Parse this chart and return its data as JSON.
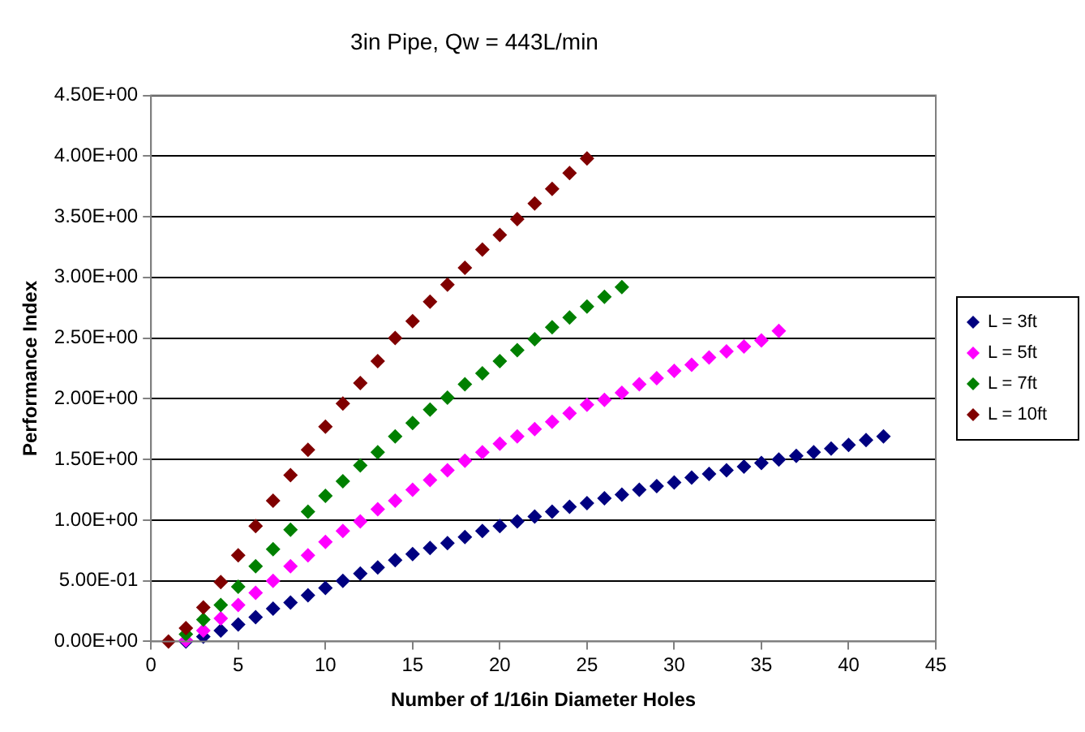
{
  "chart_data": {
    "type": "scatter",
    "title": "3in Pipe, Qw = 443L/min",
    "xlabel": "Number of 1/16in Diameter Holes",
    "ylabel": "Performance Index",
    "xlim": [
      0,
      45
    ],
    "xticks": [
      0,
      5,
      10,
      15,
      20,
      25,
      30,
      35,
      40,
      45
    ],
    "ylim": [
      0,
      4.5
    ],
    "yticks": [
      {
        "value": 0,
        "label": "0.00E+00"
      },
      {
        "value": 0.5,
        "label": "5.00E-01"
      },
      {
        "value": 1,
        "label": "1.00E+00"
      },
      {
        "value": 1.5,
        "label": "1.50E+00"
      },
      {
        "value": 2,
        "label": "2.00E+00"
      },
      {
        "value": 2.5,
        "label": "2.50E+00"
      },
      {
        "value": 3,
        "label": "3.00E+00"
      },
      {
        "value": 3.5,
        "label": "3.50E+00"
      },
      {
        "value": 4,
        "label": "4.00E+00"
      },
      {
        "value": 4.5,
        "label": "4.50E+00"
      }
    ],
    "grid": "y",
    "legend": "right",
    "marker": "diamond",
    "series": [
      {
        "name": "L = 3ft",
        "color": "#000080",
        "x": [
          2,
          3,
          4,
          5,
          6,
          7,
          8,
          9,
          10,
          11,
          12,
          13,
          14,
          15,
          16,
          17,
          18,
          19,
          20,
          21,
          22,
          23,
          24,
          25,
          26,
          27,
          28,
          29,
          30,
          31,
          32,
          33,
          34,
          35,
          36,
          37,
          38,
          39,
          40,
          41,
          42
        ],
        "values": [
          0.0,
          0.04,
          0.09,
          0.14,
          0.2,
          0.27,
          0.32,
          0.38,
          0.44,
          0.5,
          0.56,
          0.61,
          0.67,
          0.72,
          0.77,
          0.81,
          0.86,
          0.91,
          0.95,
          0.99,
          1.03,
          1.07,
          1.11,
          1.14,
          1.18,
          1.21,
          1.25,
          1.28,
          1.31,
          1.35,
          1.38,
          1.41,
          1.44,
          1.47,
          1.5,
          1.53,
          1.56,
          1.59,
          1.62,
          1.66,
          1.69
        ]
      },
      {
        "name": "L = 5ft",
        "color": "#ff00ff",
        "x": [
          2,
          3,
          4,
          5,
          6,
          7,
          8,
          9,
          10,
          11,
          12,
          13,
          14,
          15,
          16,
          17,
          18,
          19,
          20,
          21,
          22,
          23,
          24,
          25,
          26,
          27,
          28,
          29,
          30,
          31,
          32,
          33,
          34,
          35,
          36
        ],
        "values": [
          0.01,
          0.09,
          0.19,
          0.3,
          0.4,
          0.5,
          0.62,
          0.71,
          0.82,
          0.91,
          0.99,
          1.09,
          1.16,
          1.25,
          1.33,
          1.41,
          1.49,
          1.56,
          1.63,
          1.69,
          1.75,
          1.81,
          1.88,
          1.95,
          1.99,
          2.05,
          2.12,
          2.17,
          2.23,
          2.28,
          2.34,
          2.39,
          2.43,
          2.48,
          2.56
        ]
      },
      {
        "name": "L = 7ft",
        "color": "#008000",
        "x": [
          2,
          3,
          4,
          5,
          6,
          7,
          8,
          9,
          10,
          11,
          12,
          13,
          14,
          15,
          16,
          17,
          18,
          19,
          20,
          21,
          22,
          23,
          24,
          25,
          26,
          27
        ],
        "values": [
          0.06,
          0.18,
          0.3,
          0.45,
          0.62,
          0.76,
          0.92,
          1.07,
          1.2,
          1.32,
          1.45,
          1.56,
          1.69,
          1.8,
          1.91,
          2.01,
          2.12,
          2.21,
          2.31,
          2.4,
          2.49,
          2.59,
          2.67,
          2.76,
          2.84,
          2.92
        ]
      },
      {
        "name": "L = 10ft",
        "color": "#800000",
        "x": [
          1,
          2,
          3,
          4,
          5,
          6,
          7,
          8,
          9,
          10,
          11,
          12,
          13,
          14,
          15,
          16,
          17,
          18,
          19,
          20,
          21,
          22,
          23,
          24,
          25
        ],
        "values": [
          0.0,
          0.11,
          0.28,
          0.49,
          0.71,
          0.95,
          1.16,
          1.37,
          1.58,
          1.77,
          1.96,
          2.13,
          2.31,
          2.5,
          2.64,
          2.8,
          2.94,
          3.08,
          3.23,
          3.35,
          3.48,
          3.61,
          3.73,
          3.86,
          3.98
        ]
      }
    ]
  }
}
